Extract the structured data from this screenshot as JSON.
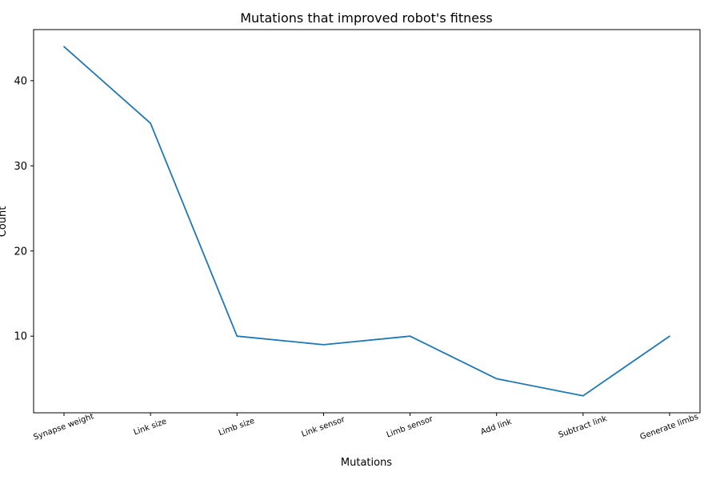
{
  "chart_data": {
    "type": "line",
    "title": "Mutations that improved robot's fitness",
    "xlabel": "Mutations",
    "ylabel": "Count",
    "categories": [
      "Synapse weight",
      "Link size",
      "Limb size",
      "Link sensor",
      "Limb sensor",
      "Add link",
      "Subtract link",
      "Generate limbs"
    ],
    "values": [
      44,
      35,
      10,
      9,
      10,
      5,
      3,
      10
    ],
    "yticks": [
      10,
      20,
      30,
      40
    ],
    "ylim": [
      1.0,
      46.0
    ],
    "grid": false,
    "legend": "none",
    "line_color": "#1f77b4"
  }
}
